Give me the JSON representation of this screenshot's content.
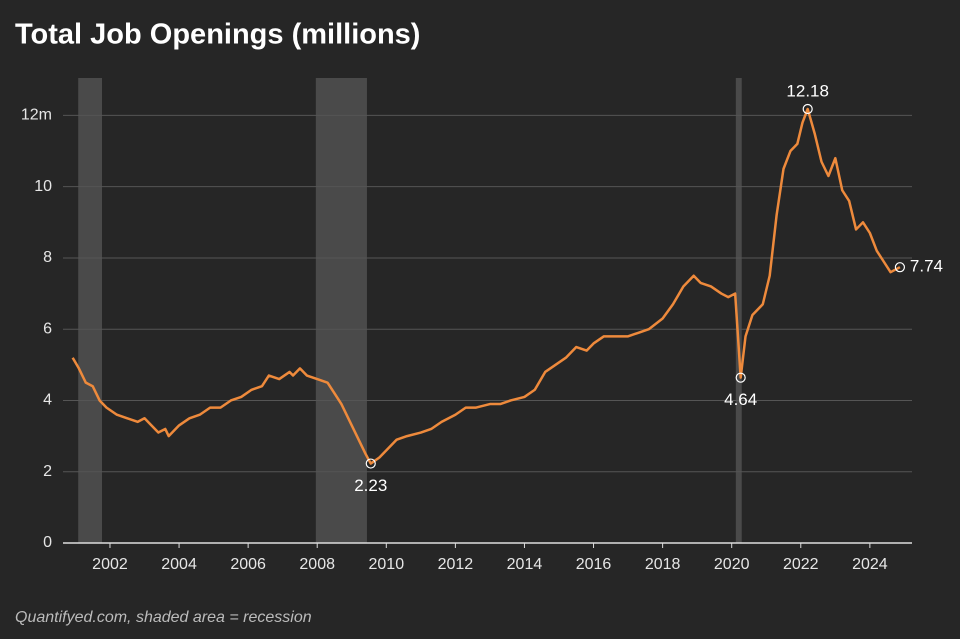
{
  "chart_data": {
    "type": "line",
    "title": "Total Job Openings (millions)",
    "footnote": "Quantifyed.com, shaded area = recession",
    "x": [
      2000.92,
      2001.1,
      2001.3,
      2001.5,
      2001.7,
      2001.9,
      2002.2,
      2002.5,
      2002.8,
      2003.0,
      2003.2,
      2003.4,
      2003.6,
      2003.7,
      2004.0,
      2004.3,
      2004.6,
      2004.9,
      2005.2,
      2005.5,
      2005.8,
      2006.1,
      2006.4,
      2006.6,
      2006.9,
      2007.2,
      2007.3,
      2007.5,
      2007.7,
      2008.0,
      2008.3,
      2008.5,
      2008.7,
      2009.0,
      2009.2,
      2009.4,
      2009.55,
      2009.8,
      2010.0,
      2010.3,
      2010.6,
      2011.0,
      2011.3,
      2011.6,
      2012.0,
      2012.3,
      2012.6,
      2013.0,
      2013.3,
      2013.6,
      2014.0,
      2014.3,
      2014.6,
      2014.9,
      2015.2,
      2015.5,
      2015.8,
      2016.0,
      2016.3,
      2016.6,
      2017.0,
      2017.3,
      2017.6,
      2018.0,
      2018.3,
      2018.6,
      2018.9,
      2019.1,
      2019.4,
      2019.7,
      2019.9,
      2020.1,
      2020.26,
      2020.4,
      2020.6,
      2020.9,
      2021.1,
      2021.3,
      2021.5,
      2021.7,
      2021.9,
      2022.05,
      2022.2,
      2022.4,
      2022.6,
      2022.8,
      2023.0,
      2023.2,
      2023.4,
      2023.6,
      2023.8,
      2024.0,
      2024.2,
      2024.4,
      2024.6,
      2024.87
    ],
    "series": [
      {
        "name": "Job openings",
        "color": "#ee8a3c",
        "values": [
          5.2,
          4.9,
          4.5,
          4.4,
          4.0,
          3.8,
          3.6,
          3.5,
          3.4,
          3.5,
          3.3,
          3.1,
          3.2,
          3.0,
          3.3,
          3.5,
          3.6,
          3.8,
          3.8,
          4.0,
          4.1,
          4.3,
          4.4,
          4.7,
          4.6,
          4.8,
          4.7,
          4.9,
          4.7,
          4.6,
          4.5,
          4.2,
          3.9,
          3.3,
          2.9,
          2.5,
          2.23,
          2.4,
          2.6,
          2.9,
          3.0,
          3.1,
          3.2,
          3.4,
          3.6,
          3.8,
          3.8,
          3.9,
          3.9,
          4.0,
          4.1,
          4.3,
          4.8,
          5.0,
          5.2,
          5.5,
          5.4,
          5.6,
          5.8,
          5.8,
          5.8,
          5.9,
          6.0,
          6.3,
          6.7,
          7.2,
          7.5,
          7.3,
          7.2,
          7.0,
          6.9,
          7.0,
          4.64,
          5.8,
          6.4,
          6.7,
          7.5,
          9.2,
          10.5,
          11.0,
          11.2,
          11.8,
          12.18,
          11.5,
          10.7,
          10.3,
          10.8,
          9.9,
          9.6,
          8.8,
          9.0,
          8.7,
          8.2,
          7.9,
          7.6,
          7.74
        ]
      }
    ],
    "annotations": [
      {
        "x": 2009.55,
        "value": 2.23,
        "position": "below"
      },
      {
        "x": 2020.26,
        "value": 4.64,
        "position": "below"
      },
      {
        "x": 2022.2,
        "value": 12.18,
        "position": "above"
      },
      {
        "x": 2024.87,
        "value": 7.74,
        "position": "right"
      }
    ],
    "recessions": [
      [
        2001.08,
        2001.77
      ],
      [
        2007.96,
        2009.44
      ],
      [
        2020.12,
        2020.29
      ]
    ],
    "xlim": [
      2000.64,
      2025.22
    ],
    "ylim": [
      0,
      13.05
    ],
    "xticks": [
      2002,
      2004,
      2006,
      2008,
      2010,
      2012,
      2014,
      2016,
      2018,
      2020,
      2022,
      2024
    ],
    "yticks": [
      0,
      2,
      4,
      6,
      8,
      10,
      {
        "value": 12,
        "label": "12m"
      }
    ],
    "grid": true
  }
}
